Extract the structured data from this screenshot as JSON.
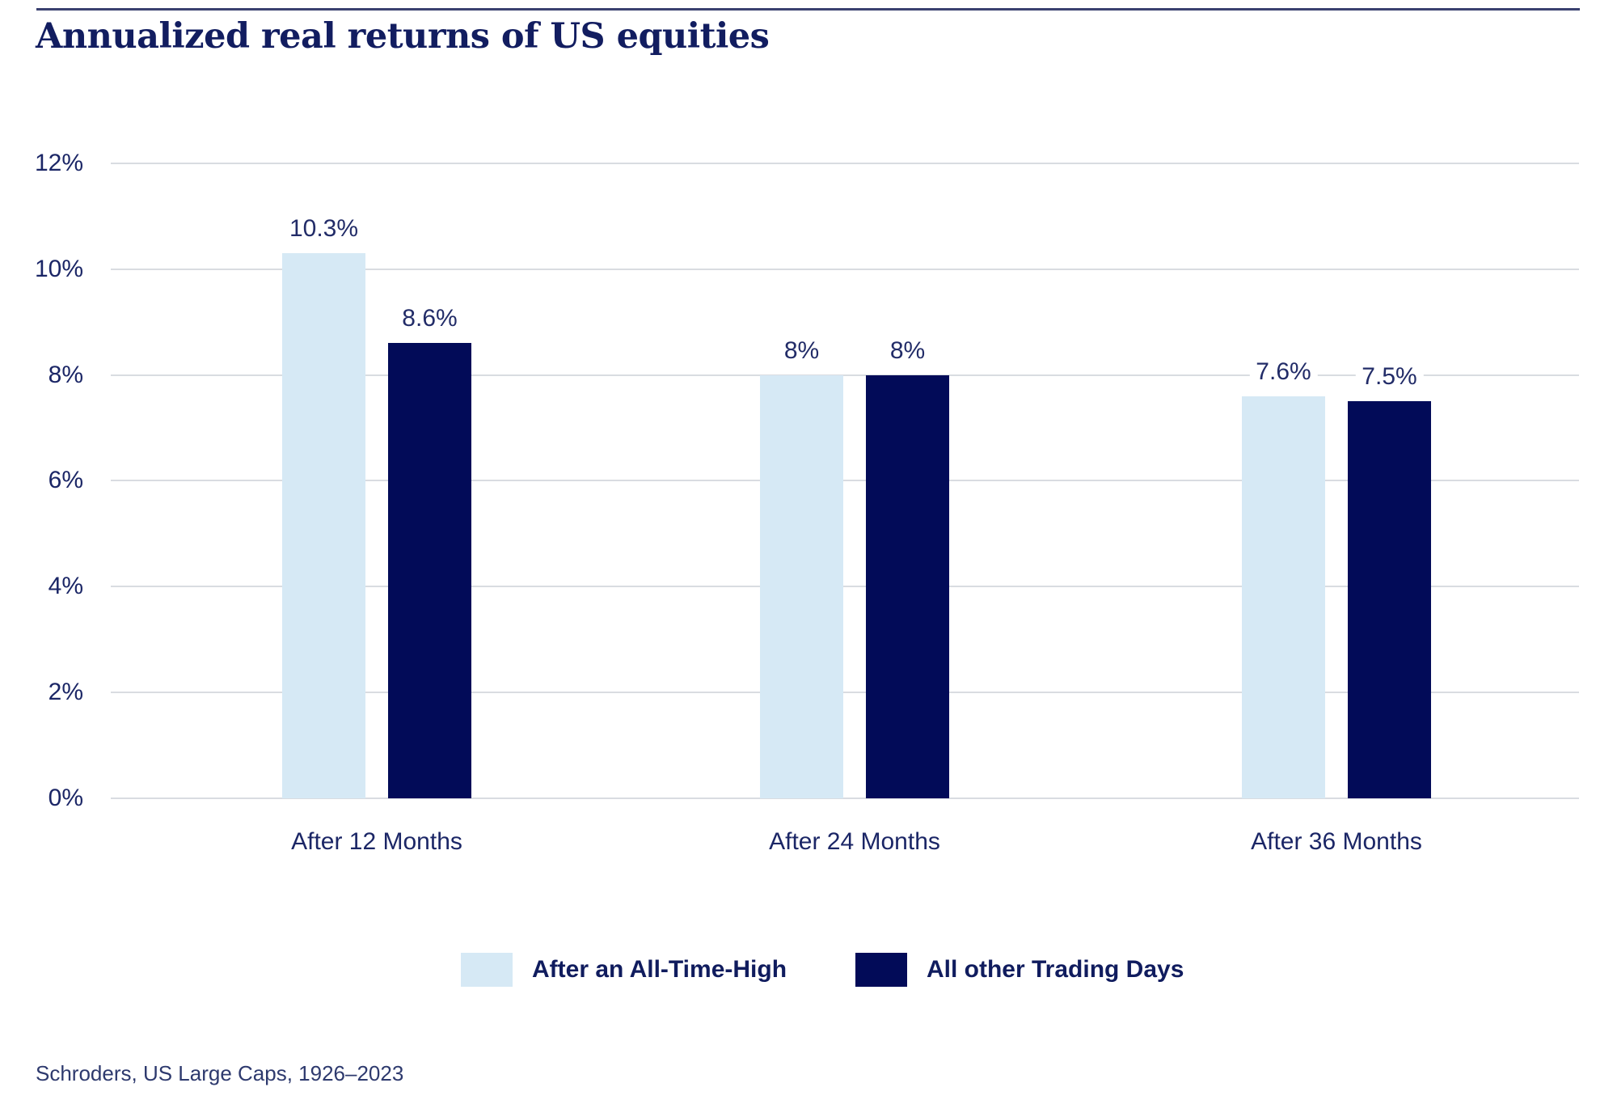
{
  "page": {
    "title": "Annualized real returns of US equities",
    "source": "Schroders, US Large Caps, 1926–2023"
  },
  "colors": {
    "title_navy": "#121D60",
    "text_navy": "#1B2666",
    "bar_light_blue": "#D6E9F5",
    "bar_dark_navy": "#020B58",
    "gridline_gray": "#D9DCE1",
    "top_rule_navy": "#3A4170"
  },
  "legend": {
    "items": [
      {
        "label": "After an All-Time-High",
        "color": "#D6E9F5"
      },
      {
        "label": "All other Trading Days",
        "color": "#020B58"
      }
    ]
  },
  "chart_data": {
    "type": "bar",
    "title": "Annualized real returns of US equities",
    "categories": [
      "After 12 Months",
      "After 24 Months",
      "After 36 Months"
    ],
    "series": [
      {
        "name": "After an All-Time-High",
        "color": "#D6E9F5",
        "values": [
          10.3,
          8,
          7.6
        ],
        "display_values": [
          "10.3%",
          "8%",
          "7.6%"
        ]
      },
      {
        "name": "All other Trading Days",
        "color": "#020B58",
        "values": [
          8.6,
          8,
          7.5
        ],
        "display_values": [
          "8.6%",
          "8%",
          "7.5%"
        ]
      }
    ],
    "xlabel": "",
    "ylabel": "",
    "ylim": [
      0,
      12
    ],
    "y_ticks": [
      0,
      2,
      4,
      6,
      8,
      10,
      12
    ],
    "y_tick_labels": [
      "0%",
      "2%",
      "4%",
      "6%",
      "8%",
      "10%",
      "12%"
    ],
    "grid": true,
    "legend_position": "bottom",
    "source": "Schroders, US Large Caps, 1926–2023"
  }
}
